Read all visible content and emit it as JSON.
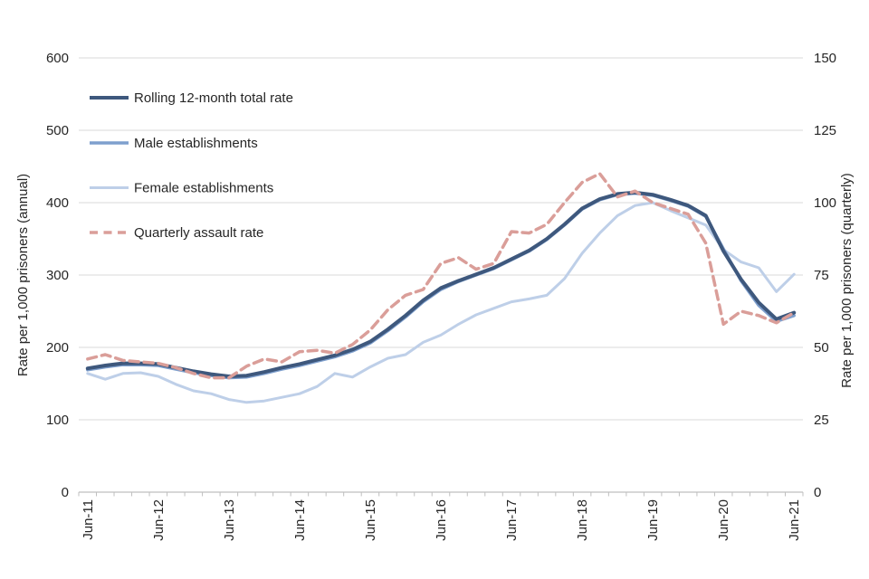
{
  "chart_data": {
    "type": "line",
    "title": "",
    "x": [
      "Jun-11",
      "Sep-11",
      "Dec-11",
      "Mar-12",
      "Jun-12",
      "Sep-12",
      "Dec-12",
      "Mar-13",
      "Jun-13",
      "Sep-13",
      "Dec-13",
      "Mar-14",
      "Jun-14",
      "Sep-14",
      "Dec-14",
      "Mar-15",
      "Jun-15",
      "Sep-15",
      "Dec-15",
      "Mar-16",
      "Jun-16",
      "Sep-16",
      "Dec-16",
      "Mar-17",
      "Jun-17",
      "Sep-17",
      "Dec-17",
      "Mar-18",
      "Jun-18",
      "Sep-18",
      "Dec-18",
      "Mar-19",
      "Jun-19",
      "Sep-19",
      "Dec-19",
      "Mar-20",
      "Jun-20",
      "Sep-20",
      "Dec-20",
      "Mar-21",
      "Jun-21"
    ],
    "x_tick_labels_shown": [
      "Jun-11",
      "Jun-12",
      "Jun-13",
      "Jun-14",
      "Jun-15",
      "Jun-16",
      "Jun-17",
      "Jun-18",
      "Jun-19",
      "Jun-20",
      "Jun-21"
    ],
    "left_axis": {
      "label": "Rate per 1,000 prisoners (annual)",
      "min": 0,
      "max": 600,
      "step": 100,
      "ticks": [
        0,
        100,
        200,
        300,
        400,
        500,
        600
      ]
    },
    "right_axis": {
      "label": "Rate per 1,000 prisoners (quarterly)",
      "min": 0,
      "max": 150,
      "step": 25,
      "ticks": [
        0,
        25,
        50,
        75,
        100,
        125,
        150
      ]
    },
    "grid": true,
    "legend_position": "top-left",
    "series": [
      {
        "name": "Rolling 12-month total rate",
        "axis": "left",
        "color": "#3E587D",
        "width": 4,
        "dash": null,
        "values": [
          171,
          175,
          178,
          178,
          177,
          172,
          167,
          163,
          160,
          161,
          166,
          172,
          177,
          183,
          189,
          197,
          208,
          225,
          244,
          265,
          282,
          292,
          301,
          310,
          322,
          334,
          350,
          370,
          392,
          405,
          412,
          414,
          411,
          404,
          396,
          382,
          333,
          294,
          262,
          239,
          248
        ]
      },
      {
        "name": "Male establishments",
        "axis": "left",
        "color": "#7E9FCD",
        "width": 3.5,
        "dash": null,
        "values": [
          169,
          173,
          176,
          176,
          175,
          170,
          165,
          161,
          158,
          159,
          164,
          170,
          175,
          181,
          187,
          195,
          206,
          223,
          242,
          263,
          280,
          291,
          300,
          309,
          321,
          333,
          349,
          369,
          391,
          404,
          411,
          413,
          410,
          403,
          395,
          381,
          336,
          292,
          258,
          236,
          244
        ]
      },
      {
        "name": "Female establishments",
        "axis": "left",
        "color": "#BECFE8",
        "width": 3,
        "dash": null,
        "values": [
          164,
          156,
          164,
          165,
          160,
          149,
          140,
          136,
          128,
          124,
          126,
          131,
          136,
          146,
          164,
          159,
          173,
          185,
          190,
          207,
          217,
          232,
          245,
          254,
          263,
          267,
          272,
          295,
          330,
          358,
          382,
          396,
          400,
          389,
          379,
          369,
          335,
          318,
          310,
          277,
          301
        ]
      },
      {
        "name": "Quarterly assault rate",
        "axis": "right",
        "color": "#DA9E99",
        "width": 3.5,
        "dash": "10 6",
        "values": [
          46,
          47.5,
          45.5,
          45,
          44.5,
          43,
          41,
          39.5,
          39.5,
          43.5,
          46,
          45,
          48.5,
          49,
          48,
          51,
          56,
          63,
          68,
          70,
          79,
          81,
          77,
          79,
          90,
          89.5,
          92.5,
          100,
          107,
          110,
          102,
          104,
          100,
          98,
          96,
          86,
          58,
          62.5,
          61,
          58.5,
          62
        ]
      }
    ]
  },
  "colors": {
    "gridline": "#D9D9D9",
    "axis_line": "#BFBFBF",
    "tick_text": "#262626"
  }
}
